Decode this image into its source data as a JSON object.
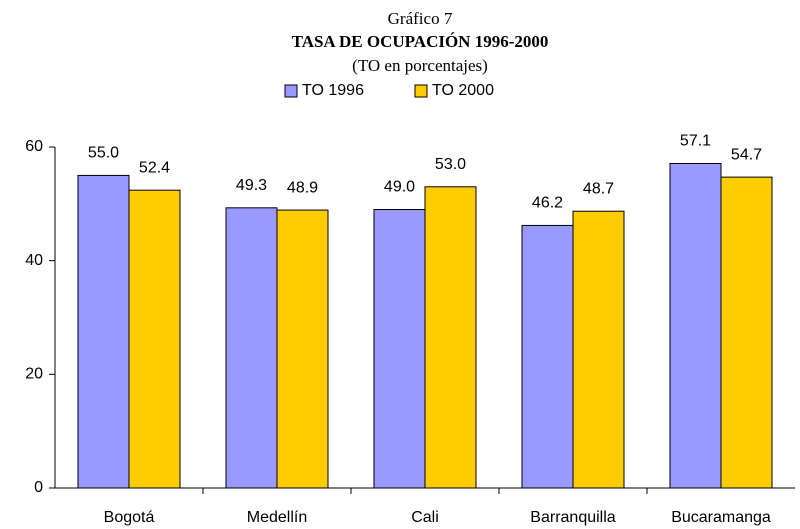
{
  "chart_data": {
    "type": "bar",
    "kicker": "Gráfico 7",
    "title": "TASA DE OCUPACIÓN 1996-2000",
    "subtitle": "(TO en porcentajes)",
    "categories": [
      "Bogotá",
      "Medellín",
      "Cali",
      "Barranquilla",
      "Bucaramanga"
    ],
    "series": [
      {
        "name": "TO 1996",
        "color": "#9999ff",
        "values": [
          55.0,
          49.3,
          49.0,
          46.2,
          57.1
        ],
        "value_labels": [
          "55.0",
          "49.3",
          "49.0",
          "46.2",
          "57.1"
        ]
      },
      {
        "name": "TO 2000",
        "color": "#ffcc00",
        "values": [
          52.4,
          48.9,
          53.0,
          48.7,
          54.7
        ],
        "value_labels": [
          "52.4",
          "48.9",
          "53.0",
          "48.7",
          "54.7"
        ]
      }
    ],
    "ylim": [
      0,
      60
    ],
    "yticks": [
      0,
      20,
      40,
      60
    ],
    "grid": false,
    "legend": "top"
  }
}
